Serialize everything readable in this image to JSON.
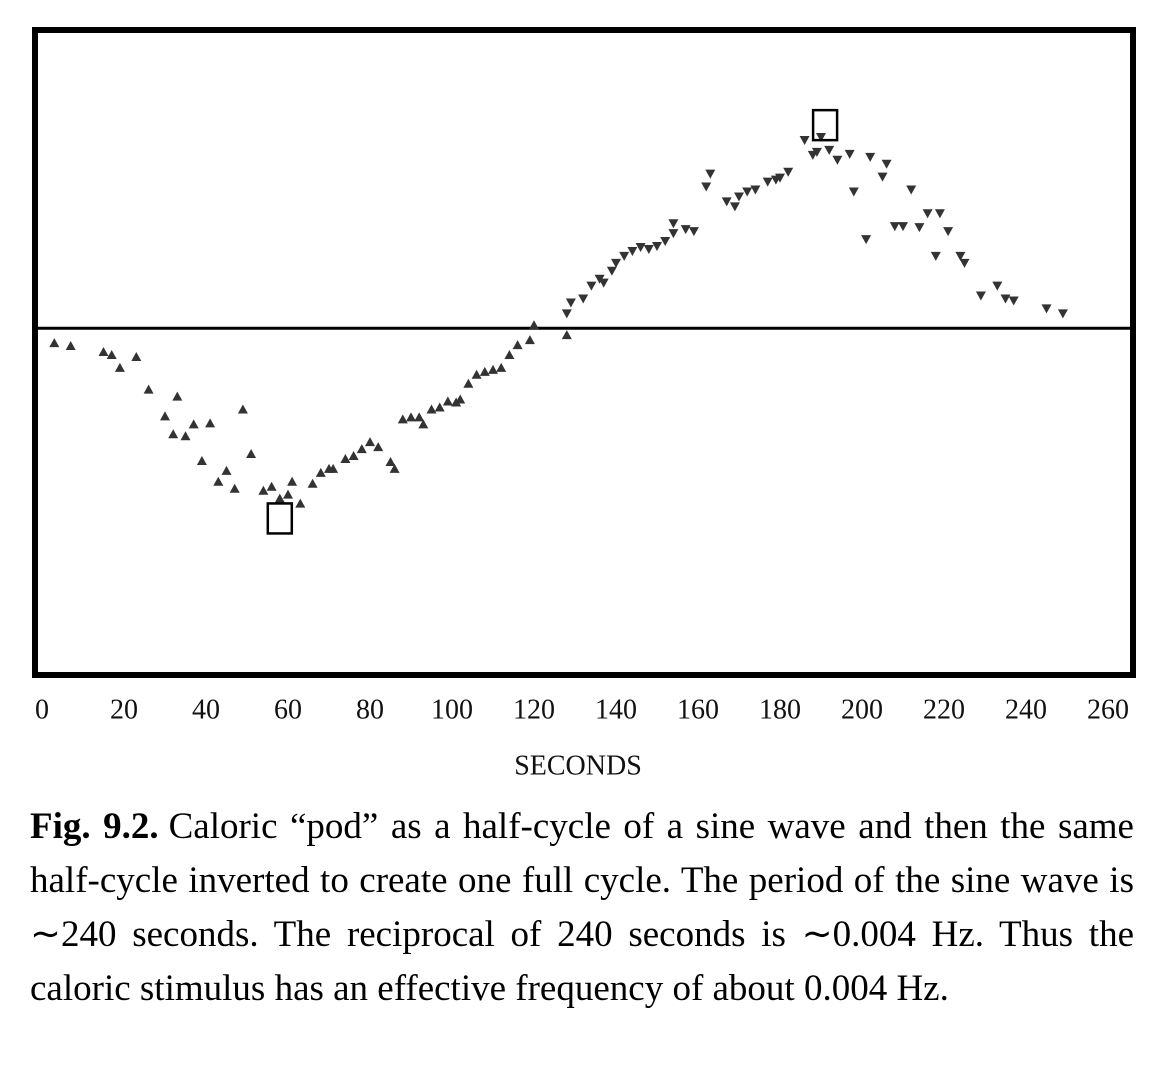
{
  "chart_data": {
    "type": "scatter",
    "xlabel": "SECONDS",
    "xlim": [
      0,
      260
    ],
    "xticks": [
      0,
      20,
      40,
      60,
      80,
      100,
      120,
      140,
      160,
      180,
      200,
      220,
      240,
      260
    ],
    "ylim": [
      -3.47,
      2.98
    ],
    "series": [
      {
        "marker": "triangle-up",
        "color": "#333333",
        "x": [
          3,
          7,
          15,
          17,
          19,
          23,
          26,
          30,
          33,
          32,
          35,
          37,
          41,
          39,
          45,
          43,
          47,
          49,
          51,
          54,
          56,
          58,
          61,
          60,
          63,
          66,
          68,
          70,
          71,
          74,
          76,
          78,
          80,
          82,
          85,
          86,
          88,
          90,
          92,
          93,
          95,
          97,
          99,
          101,
          102,
          104,
          106,
          108,
          110,
          112,
          114,
          116,
          119,
          120,
          128
        ],
        "values": [
          -0.15,
          -0.18,
          -0.24,
          -0.27,
          -0.4,
          -0.29,
          -0.62,
          -0.89,
          -0.69,
          -1.07,
          -1.09,
          -0.97,
          -0.96,
          -1.34,
          -1.44,
          -1.55,
          -1.62,
          -0.82,
          -1.27,
          -1.64,
          -1.6,
          -1.72,
          -1.55,
          -1.68,
          -1.77,
          -1.57,
          -1.46,
          -1.42,
          -1.42,
          -1.32,
          -1.29,
          -1.22,
          -1.15,
          -1.2,
          -1.35,
          -1.42,
          -0.92,
          -0.9,
          -0.9,
          -0.97,
          -0.82,
          -0.8,
          -0.74,
          -0.75,
          -0.72,
          -0.56,
          -0.47,
          -0.44,
          -0.42,
          -0.4,
          -0.27,
          -0.17,
          -0.12,
          0.03,
          -0.07
        ]
      },
      {
        "marker": "triangle-down",
        "color": "#333333",
        "x": [
          128,
          129,
          132,
          134,
          136,
          137,
          139,
          140,
          142,
          144,
          146,
          148,
          150,
          152,
          154,
          154,
          157,
          159,
          162,
          163,
          167,
          169,
          170,
          172,
          174,
          177,
          179,
          180,
          182,
          186,
          188,
          189,
          190,
          192,
          194,
          197,
          198,
          201,
          202,
          205,
          206,
          208,
          210,
          212,
          214,
          216,
          218,
          219,
          221,
          224,
          225,
          229,
          233,
          235,
          237,
          245,
          249
        ],
        "values": [
          0.15,
          0.26,
          0.3,
          0.43,
          0.5,
          0.46,
          0.58,
          0.66,
          0.73,
          0.78,
          0.82,
          0.8,
          0.83,
          0.88,
          0.96,
          1.06,
          1.0,
          0.98,
          1.43,
          1.56,
          1.28,
          1.23,
          1.33,
          1.38,
          1.4,
          1.48,
          1.5,
          1.52,
          1.58,
          1.9,
          1.75,
          1.78,
          1.93,
          1.8,
          1.7,
          1.76,
          1.38,
          0.9,
          1.73,
          1.53,
          1.66,
          1.03,
          1.03,
          1.4,
          1.02,
          1.16,
          0.73,
          1.16,
          0.98,
          0.73,
          0.66,
          0.33,
          0.43,
          0.3,
          0.28,
          0.2,
          0.15
        ]
      },
      {
        "marker": "square",
        "color": "#000000",
        "x": [
          58,
          191
        ],
        "values": [
          -1.92,
          2.05
        ]
      }
    ]
  },
  "caption": {
    "label": "Fig. 9.2.",
    "text": "Caloric “pod” as a half-cycle of a sine wave and then the same half-cycle inverted to create one full cycle. The period of the sine wave is ∼240 seconds. The reciprocal of 240 seconds is ∼0.004 Hz. Thus the caloric stimulus has an effective frequency of about 0.004 Hz."
  }
}
